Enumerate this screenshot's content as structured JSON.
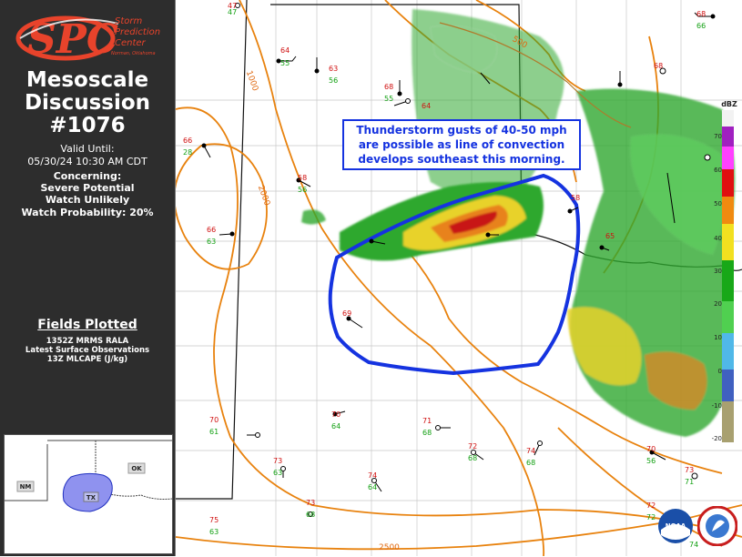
{
  "header": {
    "logo_text_1": "Storm",
    "logo_text_2": "Prediction",
    "logo_text_3": "Center",
    "logo_text_4": "Norman, Oklahoma",
    "title_line_1": "Mesoscale",
    "title_line_2": "Discussion",
    "number": "#1076"
  },
  "details": {
    "valid_label": "Valid Until:",
    "valid_time": "05/30/24 10:30 AM CDT",
    "concerning_label": "Concerning:",
    "concerning_1": "Severe Potential",
    "concerning_2": "Watch Unlikely",
    "watch_probability": "Watch Probability: 20%"
  },
  "fields": {
    "title": "Fields Plotted",
    "items": [
      "1352Z MRMS RALA",
      "Latest Surface Observations",
      "13Z MLCAPE (J/kg)"
    ]
  },
  "inset": {
    "states": [
      "NM",
      "OK",
      "TX"
    ],
    "area_color": "#8f92ef"
  },
  "callout": {
    "line_1": "Thunderstorm gusts of 40-50 mph",
    "line_2": "are possible as line of convection",
    "line_3": "develops southeast this morning."
  },
  "colorbar": {
    "unit": "dBZ",
    "ticks": [
      "70",
      "60",
      "50",
      "40",
      "30",
      "20",
      "10",
      "0",
      "-10",
      "-20"
    ]
  },
  "contour_labels": [
    "1000",
    "2000",
    "500",
    "2500"
  ],
  "stations": [
    {
      "t": "47",
      "d": "47"
    },
    {
      "t": "64",
      "d": "55"
    },
    {
      "t": "63",
      "d": "56"
    },
    {
      "t": "68",
      "d": "55"
    },
    {
      "t": "64",
      "d": ""
    },
    {
      "t": "66",
      "d": "28"
    },
    {
      "t": "58",
      "d": "56"
    },
    {
      "t": "66",
      "d": "63"
    },
    {
      "t": "69",
      "d": ""
    },
    {
      "t": "68",
      "d": "66"
    },
    {
      "t": "68",
      "d": ""
    },
    {
      "t": "58",
      "d": ""
    },
    {
      "t": "65",
      "d": ""
    },
    {
      "t": "70",
      "d": "61"
    },
    {
      "t": "70",
      "d": "64"
    },
    {
      "t": "71",
      "d": "68"
    },
    {
      "t": "72",
      "d": "68"
    },
    {
      "t": "74",
      "d": "68"
    },
    {
      "t": "73",
      "d": "63"
    },
    {
      "t": "74",
      "d": "64"
    },
    {
      "t": "75",
      "d": "63"
    },
    {
      "t": "73",
      "d": "68"
    },
    {
      "t": "70",
      "d": "56"
    },
    {
      "t": "72",
      "d": "72"
    },
    {
      "t": "73",
      "d": "71"
    },
    {
      "t": "",
      "d": "74"
    }
  ],
  "colors": {
    "outline": "#1533e0",
    "cape_contour": "#e8820e",
    "sidebar_bg": "#2d2d2d"
  }
}
